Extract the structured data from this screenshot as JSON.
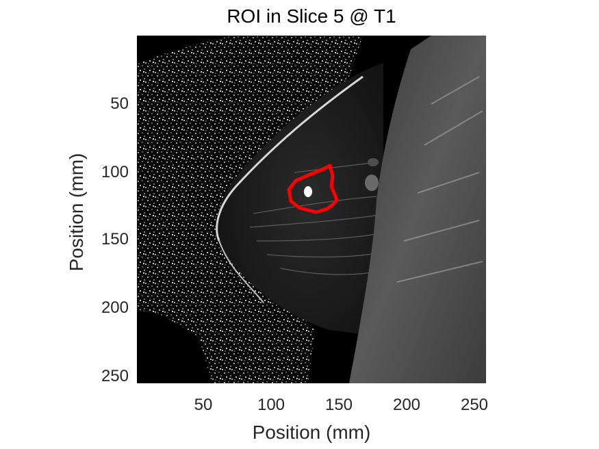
{
  "title": "ROI in Slice 5 @ T1",
  "xlabel": "Position (mm)",
  "ylabel": "Position (mm)",
  "x_ticks": [
    "50",
    "100",
    "150",
    "200",
    "250"
  ],
  "y_ticks": [
    "50",
    "100",
    "150",
    "200",
    "250"
  ],
  "colors": {
    "roi_outline": "#ff0000",
    "background": "#000000",
    "tissue": "#1f1f1f",
    "fibroglandular": "#4a4a4a"
  }
}
